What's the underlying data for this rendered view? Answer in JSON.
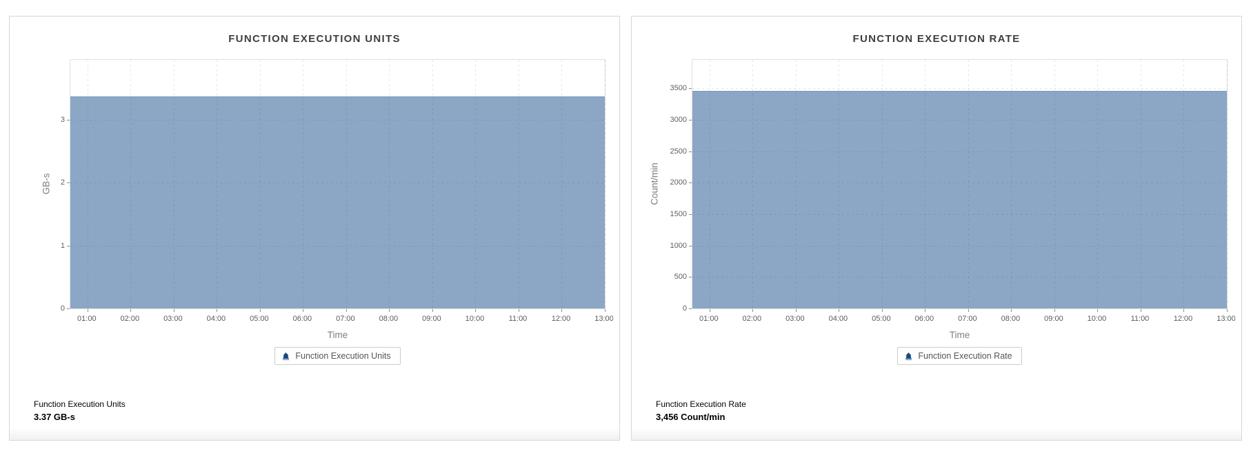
{
  "colors": {
    "area_fill": "#8ca7c6",
    "area_edge": "#7e9aba",
    "legend_icon": "#1b4a7e",
    "panel_border": "#d6d6d6",
    "title_text": "#3e3e3e"
  },
  "chart_data": [
    {
      "type": "area",
      "title": "FUNCTION EXECUTION UNITS",
      "xlabel": "Time",
      "ylabel": "GB-s",
      "x_ticks": [
        "01:00",
        "02:00",
        "03:00",
        "04:00",
        "05:00",
        "06:00",
        "07:00",
        "08:00",
        "09:00",
        "10:00",
        "11:00",
        "12:00",
        "13:00"
      ],
      "y_ticks": [
        0,
        1,
        2,
        3
      ],
      "ymax": 3.95,
      "grid": "dashed",
      "legend_position": "bottom",
      "series": [
        {
          "name": "Function Execution Units",
          "value": 3.37,
          "color": "#8ca7c6"
        }
      ],
      "legend": "Function Execution Units",
      "legend_icon": "bell-icon",
      "footer": {
        "label": "Function Execution Units",
        "value": "3.37 GB-s"
      }
    },
    {
      "type": "area",
      "title": "FUNCTION EXECUTION RATE",
      "xlabel": "Time",
      "ylabel": "Count/min",
      "x_ticks": [
        "01:00",
        "02:00",
        "03:00",
        "04:00",
        "05:00",
        "06:00",
        "07:00",
        "08:00",
        "09:00",
        "10:00",
        "11:00",
        "12:00",
        "13:00"
      ],
      "y_ticks": [
        0,
        500,
        1000,
        1500,
        2000,
        2500,
        3000,
        3500
      ],
      "ymax": 3950,
      "grid": "dashed",
      "legend_position": "bottom",
      "series": [
        {
          "name": "Function Execution Rate",
          "value": 3456,
          "color": "#8ca7c6"
        }
      ],
      "legend": "Function Execution Rate",
      "legend_icon": "bell-icon",
      "footer": {
        "label": "Function Execution Rate",
        "value": "3,456 Count/min"
      }
    }
  ]
}
